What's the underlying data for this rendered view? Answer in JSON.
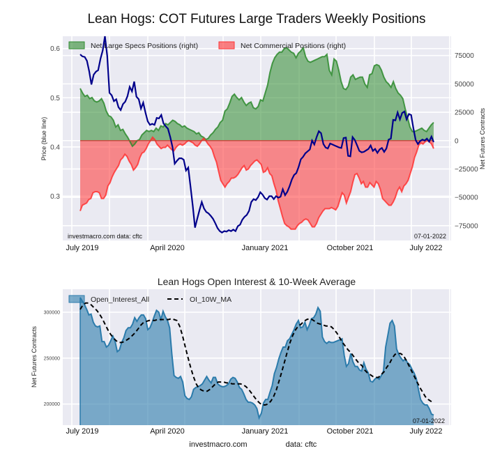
{
  "chart_data": [
    {
      "type": "area",
      "title": "Lean Hogs: COT Futures Large Traders Weekly Positions",
      "ylabel_left": "Price (blue line)",
      "ylabel_right": "Net Futures Contracts",
      "xtick_labels": [
        "July 2019",
        "April 2020",
        "January 2021",
        "October 2021",
        "July 2022"
      ],
      "yticks_left": [
        "0.3",
        "0.4",
        "0.5",
        "0.6"
      ],
      "ylim_left": [
        0.21,
        0.625
      ],
      "yticks_right": [
        "-75000",
        "-50000",
        "-25000",
        "0",
        "25000",
        "50000",
        "75000"
      ],
      "ylim_right": [
        -88000,
        92000
      ],
      "grid": true,
      "legend": {
        "placement": "top",
        "entries": [
          {
            "label": "Net Large Specs Positions (right)",
            "color": "#2e8b2e"
          },
          {
            "label": "Net Commercial Positions (right)",
            "color": "#ff3333"
          }
        ]
      },
      "annotation_left": "investmacro.com   data: cftc",
      "annotation_right": "07-01-2022",
      "x_start": "2019-06",
      "x_end": "2022-07-01",
      "series": [
        {
          "name": "Net Large Specs Positions",
          "axis": "right",
          "color": "#2e8b2e",
          "values": [
            46000,
            42000,
            39000,
            40000,
            37000,
            38000,
            35000,
            34000,
            35000,
            37000,
            33000,
            26000,
            22000,
            21000,
            18000,
            12000,
            14000,
            9000,
            10000,
            6000,
            3000,
            -1000,
            -5000,
            -3000,
            0,
            1000,
            5000,
            7000,
            9000,
            8000,
            9000,
            8000,
            11000,
            9000,
            13000,
            12000,
            15000,
            14000,
            16000,
            18000,
            17000,
            15000,
            14000,
            12000,
            13000,
            11000,
            10000,
            9000,
            8000,
            6000,
            7000,
            4000,
            3000,
            1000,
            2000,
            5000,
            7000,
            10000,
            12000,
            16000,
            18000,
            26000,
            28000,
            33000,
            39000,
            41000,
            38000,
            36000,
            38000,
            34000,
            31000,
            33000,
            34000,
            29000,
            28000,
            30000,
            36000,
            35000,
            42000,
            49000,
            60000,
            68000,
            73000,
            76000,
            78000,
            78000,
            81000,
            82000,
            80000,
            78000,
            77000,
            73000,
            77000,
            79000,
            82000,
            74000,
            70000,
            69000,
            70000,
            71000,
            72000,
            73000,
            74000,
            74000,
            76000,
            62000,
            58000,
            72000,
            70000,
            62000,
            52000,
            46000,
            45000,
            48000,
            56000,
            58000,
            54000,
            55000,
            56000,
            56000,
            50000,
            47000,
            58000,
            59000,
            66000,
            67000,
            66000,
            62000,
            56000,
            52000,
            50000,
            47000,
            52000,
            46000,
            42000,
            40000,
            37000,
            28000,
            20000,
            12000,
            8000,
            8000,
            9000,
            10000,
            11000,
            9000,
            8000,
            11000,
            14000,
            16000
          ]
        },
        {
          "name": "Net Commercial Positions",
          "axis": "right",
          "color": "#ff3333",
          "values": [
            -62000,
            -57000,
            -56000,
            -55000,
            -52000,
            -51000,
            -46000,
            -45000,
            -45000,
            -46000,
            -51000,
            -51000,
            -48000,
            -40000,
            -37000,
            -32000,
            -28000,
            -25000,
            -22000,
            -17000,
            -15000,
            -12000,
            -14000,
            -18000,
            -21000,
            -26000,
            -24000,
            -21000,
            -15000,
            -11000,
            -10000,
            -7000,
            -3000,
            0,
            3000,
            1000,
            -3000,
            -5000,
            -7000,
            -6000,
            -6000,
            -4000,
            -6000,
            -8000,
            -9000,
            -6000,
            -4000,
            -3000,
            -4000,
            -3000,
            -1000,
            0,
            -1000,
            -2000,
            -4000,
            -5000,
            -3000,
            0,
            2000,
            0,
            -3000,
            -5000,
            -8000,
            -14000,
            -19000,
            -27000,
            -35000,
            -38000,
            -41000,
            -38000,
            -36000,
            -33000,
            -33000,
            -32000,
            -30000,
            -27000,
            -24000,
            -22000,
            -26000,
            -25000,
            -22000,
            -20000,
            -18000,
            -17000,
            -19000,
            -21000,
            -28000,
            -27000,
            -24000,
            -29000,
            -31000,
            -38000,
            -44000,
            -53000,
            -60000,
            -67000,
            -73000,
            -75000,
            -76000,
            -78000,
            -78000,
            -78000,
            -75000,
            -73000,
            -72000,
            -70000,
            -69000,
            -70000,
            -73000,
            -76000,
            -76000,
            -73000,
            -68000,
            -65000,
            -62000,
            -60000,
            -60000,
            -60000,
            -59000,
            -60000,
            -61000,
            -58000,
            -52000,
            -46000,
            -48000,
            -55000,
            -50000,
            -45000,
            -37000,
            -30000,
            -29000,
            -33000,
            -38000,
            -36000,
            -41000,
            -41000,
            -37000,
            -39000,
            -41000,
            -36000,
            -38000,
            -43000,
            -51000,
            -53000,
            -55000,
            -57000,
            -57000,
            -54000,
            -50000,
            -44000,
            -41000,
            -45000,
            -40000,
            -38000,
            -35000,
            -29000,
            -23000,
            -15000,
            -10000,
            -4000,
            -2000,
            -3000,
            -1000,
            0,
            -1000,
            -3000,
            -7000
          ]
        },
        {
          "name": "Price",
          "axis": "left",
          "color": "#00008b",
          "values": [
            0.588,
            0.584,
            0.583,
            0.575,
            0.554,
            0.527,
            0.547,
            0.553,
            0.556,
            0.579,
            0.596,
            0.625,
            0.585,
            0.51,
            0.505,
            0.493,
            0.497,
            0.481,
            0.475,
            0.487,
            0.492,
            0.503,
            0.522,
            0.513,
            0.533,
            0.502,
            0.497,
            0.478,
            0.49,
            0.47,
            0.452,
            0.445,
            0.447,
            0.445,
            0.459,
            0.458,
            0.465,
            0.448,
            0.442,
            0.437,
            0.42,
            0.4,
            0.366,
            0.372,
            0.377,
            0.377,
            0.374,
            0.352,
            0.358,
            0.32,
            0.28,
            0.236,
            0.254,
            0.272,
            0.288,
            0.275,
            0.268,
            0.265,
            0.26,
            0.254,
            0.245,
            0.235,
            0.229,
            0.226,
            0.229,
            0.228,
            0.231,
            0.229,
            0.232,
            0.229,
            0.239,
            0.242,
            0.252,
            0.258,
            0.262,
            0.27,
            0.288,
            0.294,
            0.292,
            0.298,
            0.308,
            0.303,
            0.296,
            0.293,
            0.3,
            0.3,
            0.294,
            0.3,
            0.297,
            0.299,
            0.314,
            0.302,
            0.309,
            0.32,
            0.334,
            0.343,
            0.347,
            0.359,
            0.375,
            0.38,
            0.387,
            0.391,
            0.395,
            0.413,
            0.405,
            0.42,
            0.432,
            0.428,
            0.406,
            0.399,
            0.397,
            0.407,
            0.405,
            0.403,
            0.401,
            0.399,
            0.398,
            0.418,
            0.419,
            0.382,
            0.381,
            0.42,
            0.414,
            0.403,
            0.392,
            0.389,
            0.39,
            0.393,
            0.396,
            0.403,
            0.392,
            0.396,
            0.388,
            0.395,
            0.398,
            0.39,
            0.397,
            0.415,
            0.417,
            0.455,
            0.454,
            0.47,
            0.456,
            0.469,
            0.472,
            0.456,
            0.467,
            0.465,
            0.438,
            0.414,
            0.406,
            0.412,
            0.415,
            0.413,
            0.417,
            0.411,
            0.421,
            0.41
          ]
        }
      ]
    },
    {
      "type": "area",
      "title": "Lean Hogs Open Interest & 10-Week Average",
      "ylabel": "Net Futures Contracts",
      "xtick_labels": [
        "July 2019",
        "April 2020",
        "January 2021",
        "October 2021",
        "July 2022"
      ],
      "yticks": [
        "200000",
        "250000",
        "300000"
      ],
      "ylim": [
        177000,
        325000
      ],
      "grid": true,
      "legend": {
        "placement": "top-left",
        "entries": [
          {
            "label": "Open_Interest_All",
            "color": "#2b7bab"
          },
          {
            "label": "OI_10W_MA",
            "color": "#000000"
          }
        ]
      },
      "annotation_right": "07-01-2022",
      "series": [
        {
          "name": "Open_Interest_All",
          "color": "#2b7bab",
          "values": [
            316000,
            312000,
            308000,
            303000,
            297000,
            298000,
            289000,
            285000,
            284000,
            285000,
            268000,
            268000,
            262000,
            264000,
            269000,
            274000,
            268000,
            257000,
            259000,
            267000,
            272000,
            280000,
            283000,
            283000,
            287000,
            294000,
            290000,
            294000,
            297000,
            297000,
            293000,
            281000,
            283000,
            289000,
            296000,
            302000,
            300000,
            292000,
            301000,
            295000,
            291000,
            283000,
            255000,
            231000,
            229000,
            228000,
            230000,
            224000,
            209000,
            206000,
            205000,
            208000,
            216000,
            218000,
            219000,
            220000,
            222000,
            226000,
            230000,
            226000,
            223000,
            229000,
            229000,
            222000,
            220000,
            219000,
            219000,
            220000,
            222000,
            227000,
            229000,
            228000,
            224000,
            218000,
            216000,
            211000,
            205000,
            202000,
            202000,
            201000,
            199000,
            195000,
            185000,
            190000,
            201000,
            205000,
            205000,
            213000,
            220000,
            233000,
            240000,
            249000,
            256000,
            262000,
            262000,
            269000,
            271000,
            276000,
            281000,
            287000,
            291000,
            283000,
            284000,
            289000,
            281000,
            286000,
            293000,
            294000,
            298000,
            305000,
            301000,
            273000,
            268000,
            266000,
            268000,
            267000,
            267000,
            268000,
            269000,
            270000,
            271000,
            253000,
            241000,
            244000,
            255000,
            246000,
            241000,
            241000,
            237000,
            236000,
            245000,
            238000,
            234000,
            225000,
            224000,
            227000,
            229000,
            227000,
            231000,
            236000,
            262000,
            275000,
            288000,
            291000,
            285000,
            260000,
            254000,
            250000,
            247000,
            249000,
            245000,
            243000,
            238000,
            234000,
            228000,
            216000,
            205000,
            201000,
            199000,
            199000,
            195000,
            189000,
            188000
          ]
        },
        {
          "name": "OI_10W_MA",
          "color": "#000000",
          "values": [
            303000,
            308000,
            310000,
            310000,
            308000,
            305000,
            302000,
            298000,
            293000,
            287000,
            281000,
            276000,
            272000,
            269000,
            267000,
            267000,
            268000,
            270000,
            272000,
            275000,
            278000,
            282000,
            286000,
            289000,
            290000,
            291000,
            291000,
            291000,
            292000,
            292000,
            292000,
            292000,
            292000,
            293000,
            292000,
            291000,
            285000,
            275000,
            263000,
            251000,
            240000,
            230000,
            222000,
            217000,
            215000,
            214000,
            214000,
            216000,
            219000,
            222000,
            224000,
            224000,
            224000,
            223000,
            223000,
            222000,
            222000,
            222000,
            222000,
            221000,
            219000,
            216000,
            212000,
            208000,
            204000,
            201000,
            199000,
            199000,
            200000,
            203000,
            208000,
            215000,
            225000,
            235000,
            246000,
            257000,
            267000,
            275000,
            281000,
            285000,
            287000,
            290000,
            292000,
            293000,
            292000,
            290000,
            288000,
            287000,
            286000,
            285000,
            285000,
            284000,
            281000,
            277000,
            272000,
            267000,
            263000,
            259000,
            256000,
            252000,
            248000,
            244000,
            242000,
            237000,
            234000,
            232000,
            230000,
            229000,
            229000,
            232000,
            235000,
            240000,
            244000,
            250000,
            254000,
            255000,
            255000,
            253000,
            248000,
            242000,
            236000,
            230000,
            224000,
            218000,
            213000,
            208000,
            205000,
            203000,
            201000
          ]
        }
      ]
    }
  ],
  "footer": {
    "left": "investmacro.com",
    "right": "data: cftc"
  }
}
